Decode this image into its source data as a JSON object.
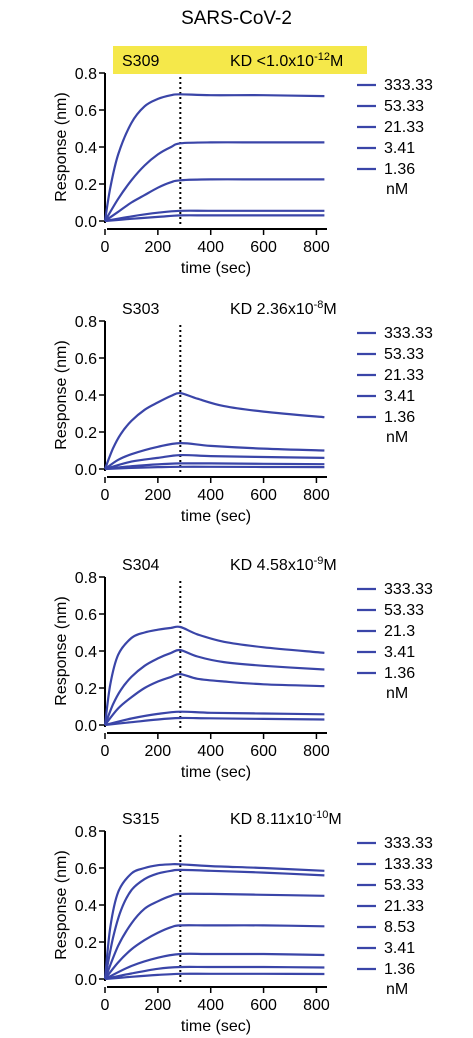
{
  "figure_title": "SARS-CoV-2",
  "colors": {
    "curve": "#3a45a8",
    "highlight": "#f5e84a"
  },
  "chart_data": [
    {
      "type": "line",
      "antibody": "S309",
      "kd_prefix": "KD <1.0x10",
      "kd_exp": "-12",
      "kd_unit": "M",
      "highlighted": true,
      "xlabel": "time (sec)",
      "ylabel": "Response (nm)",
      "xlim": [
        0,
        840
      ],
      "ylim": [
        0,
        0.8
      ],
      "xticks": [
        0,
        200,
        400,
        600,
        800
      ],
      "yticks": [
        0.0,
        0.2,
        0.4,
        0.6,
        0.8
      ],
      "yticklabels": [
        "0.0",
        "0.2",
        "0.4",
        "0.6",
        "0.8"
      ],
      "dissociation_start": 285,
      "legend": [
        "333.33",
        "53.33",
        "21.33",
        "3.41",
        "1.36"
      ],
      "legend_unit": "nM",
      "series": [
        {
          "label": "333.33",
          "x": [
            0,
            20,
            50,
            100,
            150,
            200,
            250,
            285,
            400,
            600,
            830
          ],
          "y": [
            0.0,
            0.18,
            0.36,
            0.53,
            0.62,
            0.66,
            0.68,
            0.685,
            0.68,
            0.68,
            0.675
          ]
        },
        {
          "label": "53.33",
          "x": [
            0,
            50,
            100,
            150,
            200,
            250,
            285,
            400,
            600,
            830
          ],
          "y": [
            0.0,
            0.12,
            0.22,
            0.3,
            0.36,
            0.4,
            0.42,
            0.425,
            0.425,
            0.425
          ]
        },
        {
          "label": "21.33",
          "x": [
            0,
            50,
            100,
            150,
            200,
            250,
            285,
            400,
            600,
            830
          ],
          "y": [
            0.0,
            0.05,
            0.1,
            0.14,
            0.18,
            0.21,
            0.22,
            0.225,
            0.225,
            0.225
          ]
        },
        {
          "label": "3.41",
          "x": [
            0,
            100,
            200,
            285,
            400,
            600,
            830
          ],
          "y": [
            0.0,
            0.025,
            0.045,
            0.055,
            0.055,
            0.055,
            0.055
          ]
        },
        {
          "label": "1.36",
          "x": [
            0,
            100,
            200,
            285,
            400,
            600,
            830
          ],
          "y": [
            0.0,
            0.012,
            0.022,
            0.03,
            0.03,
            0.03,
            0.03
          ]
        }
      ]
    },
    {
      "type": "line",
      "antibody": "S303",
      "kd_prefix": "KD 2.36x10",
      "kd_exp": "-8",
      "kd_unit": "M",
      "highlighted": false,
      "xlabel": "time (sec)",
      "ylabel": "Response (nm)",
      "xlim": [
        0,
        840
      ],
      "ylim": [
        0,
        0.8
      ],
      "xticks": [
        0,
        200,
        400,
        600,
        800
      ],
      "yticks": [
        0.0,
        0.2,
        0.4,
        0.6,
        0.8
      ],
      "yticklabels": [
        "0.0",
        "0.2",
        "0.4",
        "0.6",
        "0.8"
      ],
      "dissociation_start": 285,
      "legend": [
        "333.33",
        "53.33",
        "21.33",
        "3.41",
        "1.36"
      ],
      "legend_unit": "nM",
      "series": [
        {
          "label": "333.33",
          "x": [
            0,
            30,
            60,
            100,
            150,
            200,
            250,
            285,
            350,
            450,
            600,
            830
          ],
          "y": [
            0.0,
            0.11,
            0.19,
            0.26,
            0.32,
            0.36,
            0.395,
            0.41,
            0.38,
            0.34,
            0.31,
            0.28
          ]
        },
        {
          "label": "53.33",
          "x": [
            0,
            50,
            100,
            200,
            285,
            400,
            600,
            830
          ],
          "y": [
            0.0,
            0.05,
            0.08,
            0.12,
            0.14,
            0.125,
            0.11,
            0.1
          ]
        },
        {
          "label": "21.33",
          "x": [
            0,
            100,
            200,
            285,
            400,
            600,
            830
          ],
          "y": [
            0.0,
            0.04,
            0.06,
            0.075,
            0.07,
            0.065,
            0.06
          ]
        },
        {
          "label": "3.41",
          "x": [
            0,
            100,
            200,
            285,
            400,
            600,
            830
          ],
          "y": [
            0.0,
            0.015,
            0.025,
            0.03,
            0.03,
            0.028,
            0.026
          ]
        },
        {
          "label": "1.36",
          "x": [
            0,
            100,
            200,
            285,
            400,
            600,
            830
          ],
          "y": [
            0.0,
            0.006,
            0.01,
            0.012,
            0.012,
            0.011,
            0.01
          ]
        }
      ]
    },
    {
      "type": "line",
      "antibody": "S304",
      "kd_prefix": "KD 4.58x10",
      "kd_exp": "-9",
      "kd_unit": "M",
      "highlighted": false,
      "xlabel": "time (sec)",
      "ylabel": "Response (nm)",
      "xlim": [
        0,
        840
      ],
      "ylim": [
        0,
        0.8
      ],
      "xticks": [
        0,
        200,
        400,
        600,
        800
      ],
      "yticks": [
        0.0,
        0.2,
        0.4,
        0.6,
        0.8
      ],
      "yticklabels": [
        "0.0",
        "0.2",
        "0.4",
        "0.6",
        "0.8"
      ],
      "dissociation_start": 285,
      "legend": [
        "333.33",
        "53.33",
        "21.3",
        "3.41",
        "1.36"
      ],
      "legend_unit": "nM",
      "series": [
        {
          "label": "333.33",
          "x": [
            0,
            20,
            50,
            100,
            150,
            200,
            250,
            285,
            350,
            450,
            600,
            830
          ],
          "y": [
            0.0,
            0.22,
            0.38,
            0.47,
            0.5,
            0.515,
            0.525,
            0.53,
            0.49,
            0.45,
            0.42,
            0.39
          ]
        },
        {
          "label": "53.33",
          "x": [
            0,
            30,
            60,
            100,
            150,
            200,
            250,
            285,
            350,
            450,
            600,
            830
          ],
          "y": [
            0.0,
            0.11,
            0.19,
            0.26,
            0.32,
            0.36,
            0.39,
            0.405,
            0.37,
            0.34,
            0.32,
            0.3
          ]
        },
        {
          "label": "21.3",
          "x": [
            0,
            50,
            100,
            150,
            200,
            250,
            285,
            350,
            450,
            600,
            830
          ],
          "y": [
            0.0,
            0.09,
            0.15,
            0.2,
            0.235,
            0.26,
            0.275,
            0.25,
            0.235,
            0.22,
            0.21
          ]
        },
        {
          "label": "3.41",
          "x": [
            0,
            100,
            200,
            285,
            400,
            600,
            830
          ],
          "y": [
            0.0,
            0.035,
            0.06,
            0.072,
            0.066,
            0.062,
            0.058
          ]
        },
        {
          "label": "1.36",
          "x": [
            0,
            100,
            200,
            285,
            400,
            600,
            830
          ],
          "y": [
            0.0,
            0.015,
            0.03,
            0.038,
            0.036,
            0.033,
            0.03
          ]
        }
      ]
    },
    {
      "type": "line",
      "antibody": "S315",
      "kd_prefix": "KD 8.11x10",
      "kd_exp": "-10",
      "kd_unit": "M",
      "highlighted": false,
      "xlabel": "time (sec)",
      "ylabel": "Response (nm)",
      "xlim": [
        0,
        840
      ],
      "ylim": [
        0,
        0.8
      ],
      "xticks": [
        0,
        200,
        400,
        600,
        800
      ],
      "yticks": [
        0.0,
        0.2,
        0.4,
        0.6,
        0.8
      ],
      "yticklabels": [
        "0.0",
        "0.2",
        "0.4",
        "0.6",
        "0.8"
      ],
      "dissociation_start": 285,
      "legend": [
        "333.33",
        "133.33",
        "53.33",
        "21.33",
        "8.53",
        "3.41",
        "1.36"
      ],
      "legend_unit": "nM",
      "series": [
        {
          "label": "333.33",
          "x": [
            0,
            20,
            50,
            100,
            150,
            200,
            250,
            285,
            400,
            600,
            830
          ],
          "y": [
            0.0,
            0.28,
            0.47,
            0.57,
            0.6,
            0.615,
            0.62,
            0.62,
            0.61,
            0.6,
            0.585
          ]
        },
        {
          "label": "133.33",
          "x": [
            0,
            30,
            60,
            100,
            150,
            200,
            250,
            285,
            400,
            600,
            830
          ],
          "y": [
            0.0,
            0.22,
            0.37,
            0.48,
            0.54,
            0.57,
            0.585,
            0.59,
            0.585,
            0.575,
            0.56
          ]
        },
        {
          "label": "53.33",
          "x": [
            0,
            50,
            100,
            150,
            200,
            250,
            285,
            400,
            600,
            830
          ],
          "y": [
            0.0,
            0.18,
            0.3,
            0.38,
            0.42,
            0.45,
            0.46,
            0.46,
            0.455,
            0.45
          ]
        },
        {
          "label": "21.33",
          "x": [
            0,
            50,
            100,
            150,
            200,
            250,
            285,
            400,
            600,
            830
          ],
          "y": [
            0.0,
            0.09,
            0.16,
            0.21,
            0.25,
            0.28,
            0.29,
            0.29,
            0.29,
            0.285
          ]
        },
        {
          "label": "8.53",
          "x": [
            0,
            100,
            200,
            285,
            400,
            600,
            830
          ],
          "y": [
            0.0,
            0.07,
            0.115,
            0.135,
            0.135,
            0.135,
            0.13
          ]
        },
        {
          "label": "3.41",
          "x": [
            0,
            100,
            200,
            285,
            400,
            600,
            830
          ],
          "y": [
            0.0,
            0.03,
            0.055,
            0.065,
            0.065,
            0.065,
            0.062
          ]
        },
        {
          "label": "1.36",
          "x": [
            0,
            100,
            200,
            285,
            400,
            600,
            830
          ],
          "y": [
            0.0,
            0.012,
            0.022,
            0.028,
            0.028,
            0.028,
            0.027
          ]
        }
      ]
    }
  ]
}
